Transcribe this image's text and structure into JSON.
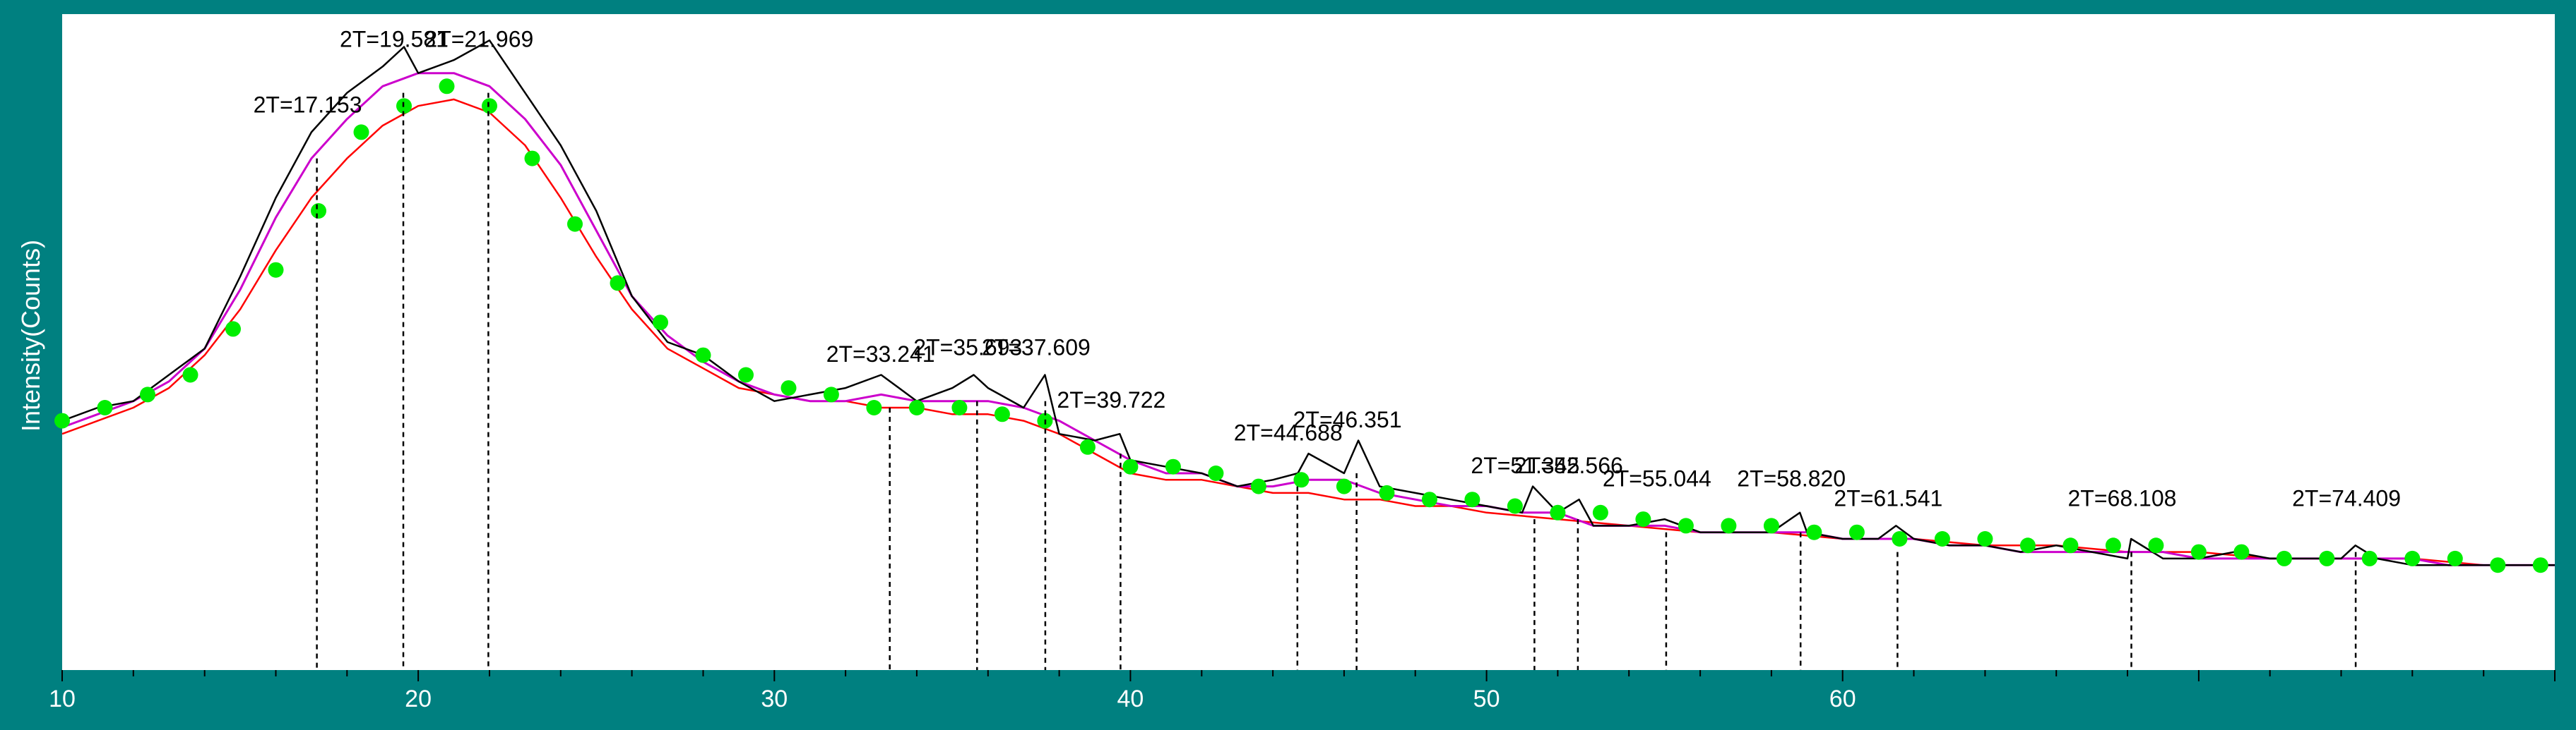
{
  "chart_data": {
    "type": "line",
    "title": "",
    "xlabel": "",
    "ylabel": "Intensity(Counts)",
    "xlim": [
      10,
      80
    ],
    "ylim": [
      0,
      100
    ],
    "x_ticks": [
      10,
      20,
      30,
      40,
      50,
      60
    ],
    "grid": false,
    "legend": "none",
    "colors": {
      "frame": "#008080",
      "plot_bg": "#ffffff",
      "raw": "#000000",
      "smoothed": "#cc00cc",
      "background": "#ff0000",
      "markers": "#00ee00",
      "peak_lines": "#000000",
      "labels_on_frame": "#ffffff"
    },
    "series": [
      {
        "role": "raw",
        "x": [
          10,
          11,
          12,
          13,
          14,
          15,
          16,
          17,
          18,
          19,
          19.6,
          20,
          21,
          22,
          23,
          24,
          25,
          26,
          27,
          28,
          29,
          30,
          31,
          32,
          33,
          34,
          35,
          35.6,
          36,
          37,
          37.6,
          38,
          39,
          39.7,
          40,
          41,
          42,
          43,
          44,
          44.7,
          45,
          46,
          46.4,
          47,
          48,
          49,
          50,
          51,
          51.3,
          52,
          52.6,
          53,
          54,
          55,
          56,
          57,
          58,
          58.8,
          59,
          60,
          61,
          61.5,
          62,
          63,
          64,
          65,
          66,
          67,
          68,
          68.1,
          69,
          70,
          71,
          72,
          73,
          74,
          74.4,
          75,
          76,
          77,
          78,
          79,
          80
        ],
        "y": [
          38,
          40,
          41,
          45,
          49,
          60,
          72,
          82,
          88,
          92,
          95,
          91,
          93,
          96,
          88,
          80,
          70,
          57,
          50,
          48,
          44,
          41,
          42,
          43,
          45,
          41,
          43,
          45,
          43,
          40,
          45,
          36,
          35,
          36,
          32,
          31,
          30,
          28,
          29,
          30,
          33,
          30,
          35,
          28,
          27,
          26,
          25,
          24,
          28,
          24,
          26,
          22,
          22,
          23,
          21,
          21,
          21,
          24,
          21,
          20,
          20,
          22,
          20,
          19,
          19,
          18,
          19,
          18,
          17,
          20,
          17,
          17,
          18,
          17,
          17,
          17,
          19,
          17,
          16,
          16,
          16,
          16,
          16
        ]
      },
      {
        "role": "smoothed",
        "x": [
          10,
          11,
          12,
          13,
          14,
          15,
          16,
          17,
          18,
          19,
          20,
          21,
          22,
          23,
          24,
          25,
          26,
          27,
          28,
          29,
          30,
          31,
          32,
          33,
          34,
          35,
          36,
          37,
          38,
          39,
          40,
          41,
          42,
          43,
          44,
          45,
          46,
          47,
          48,
          49,
          50,
          51,
          52,
          53,
          54,
          55,
          56,
          57,
          58,
          59,
          60,
          61,
          62,
          63,
          64,
          65,
          66,
          67,
          68,
          69,
          70,
          71,
          72,
          73,
          74,
          75,
          76,
          77,
          78,
          79,
          80
        ],
        "y": [
          37,
          39,
          41,
          44,
          49,
          58,
          69,
          78,
          84,
          89,
          91,
          91,
          89,
          84,
          77,
          67,
          57,
          51,
          47,
          44,
          42,
          41,
          41,
          42,
          41,
          41,
          41,
          40,
          38,
          35,
          32,
          30,
          30,
          28,
          28,
          29,
          29,
          27,
          26,
          25,
          25,
          24,
          24,
          22,
          22,
          22,
          21,
          21,
          21,
          21,
          20,
          20,
          20,
          19,
          19,
          18,
          18,
          18,
          18,
          18,
          17,
          17,
          17,
          17,
          17,
          17,
          17,
          16,
          16,
          16,
          16
        ]
      },
      {
        "role": "background",
        "x": [
          10,
          11,
          12,
          13,
          14,
          15,
          16,
          17,
          18,
          19,
          20,
          21,
          22,
          23,
          24,
          25,
          26,
          27,
          28,
          29,
          30,
          31,
          32,
          33,
          34,
          35,
          36,
          37,
          38,
          39,
          40,
          41,
          42,
          43,
          44,
          45,
          46,
          47,
          48,
          49,
          50,
          52,
          54,
          56,
          58,
          60,
          62,
          64,
          66,
          68,
          70,
          72,
          74,
          76,
          78,
          80
        ],
        "y": [
          36,
          38,
          40,
          43,
          48,
          55,
          64,
          72,
          78,
          83,
          86,
          87,
          85,
          80,
          72,
          63,
          55,
          49,
          46,
          43,
          42,
          41,
          41,
          40,
          40,
          39,
          39,
          38,
          36,
          33,
          30,
          29,
          29,
          28,
          27,
          27,
          26,
          26,
          25,
          25,
          24,
          23,
          22,
          21,
          21,
          20,
          20,
          19,
          19,
          18,
          18,
          17,
          17,
          17,
          16,
          16
        ]
      },
      {
        "role": "markers",
        "x": [
          10,
          11.2,
          12.4,
          13.6,
          14.8,
          16,
          17.2,
          18.4,
          19.6,
          20.8,
          22,
          23.2,
          24.4,
          25.6,
          26.8,
          28,
          29.2,
          30.4,
          31.6,
          32.8,
          34,
          35.2,
          36.4,
          37.6,
          38.8,
          40,
          41.2,
          42.4,
          43.6,
          44.8,
          46,
          47.2,
          48.4,
          49.6,
          50.8,
          52,
          53.2,
          54.4,
          55.6,
          56.8,
          58,
          59.2,
          60.4,
          61.6,
          62.8,
          64,
          65.2,
          66.4,
          67.6,
          68.8,
          70,
          71.2,
          72.4,
          73.6,
          74.8,
          76,
          77.2,
          78.4,
          79.6
        ],
        "y": [
          38,
          40,
          42,
          45,
          52,
          61,
          70,
          82,
          86,
          89,
          86,
          78,
          68,
          59,
          53,
          48,
          45,
          43,
          42,
          40,
          40,
          40,
          39,
          38,
          34,
          31,
          31,
          30,
          28,
          29,
          28,
          27,
          26,
          26,
          25,
          24,
          24,
          23,
          22,
          22,
          22,
          21,
          21,
          20,
          20,
          20,
          19,
          19,
          19,
          19,
          18,
          18,
          17,
          17,
          17,
          17,
          17,
          16,
          16
        ]
      }
    ],
    "peaks": [
      {
        "x": 17.153,
        "label": "2T=17.153",
        "y": 85
      },
      {
        "x": 19.581,
        "label": "2T=19.581",
        "y": 95
      },
      {
        "x": 21.969,
        "label": "2T=21.969",
        "y": 95
      },
      {
        "x": 33.241,
        "label": "2T=33.241",
        "y": 47
      },
      {
        "x": 35.693,
        "label": "2T=35.693",
        "y": 48
      },
      {
        "x": 37.609,
        "label": "2T=37.609",
        "y": 48
      },
      {
        "x": 39.722,
        "label": "2T=39.722",
        "y": 40
      },
      {
        "x": 44.688,
        "label": "2T=44.688",
        "y": 35
      },
      {
        "x": 46.351,
        "label": "2T=46.351",
        "y": 37
      },
      {
        "x": 51.345,
        "label": "2T=51.345",
        "y": 30
      },
      {
        "x": 52.566,
        "label": "2T=52.566",
        "y": 30
      },
      {
        "x": 55.044,
        "label": "2T=55.044",
        "y": 28
      },
      {
        "x": 58.82,
        "label": "2T=58.820",
        "y": 28
      },
      {
        "x": 61.541,
        "label": "2T=61.541",
        "y": 25
      },
      {
        "x": 68.108,
        "label": "2T=68.108",
        "y": 25
      },
      {
        "x": 74.409,
        "label": "2T=74.409",
        "y": 25
      }
    ]
  }
}
